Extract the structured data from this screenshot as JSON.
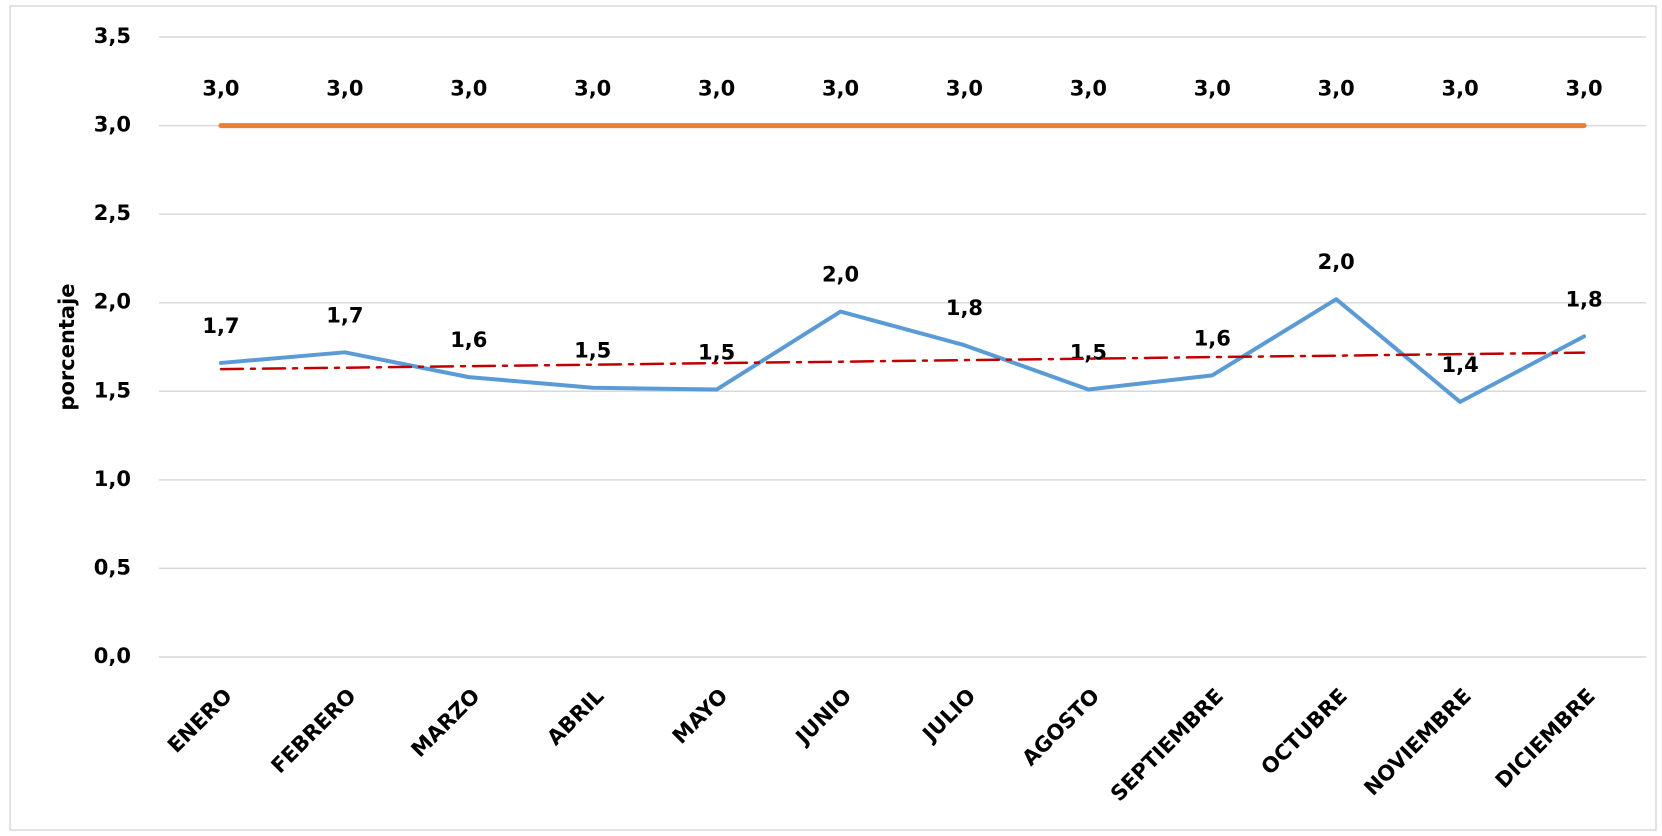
{
  "chart_data": {
    "type": "line",
    "y_label": "porcentaje",
    "categories": [
      "ENERO",
      "FEBRERO",
      "MARZO",
      "ABRIL",
      "MAYO",
      "JUNIO",
      "JULIO",
      "AGOSTO",
      "SEPTIEMBRE",
      "OCTUBRE",
      "NOVIEMBRE",
      "DICIEMBRE"
    ],
    "series": [
      {
        "color": "#ed7d31",
        "width": 5,
        "values": [
          3,
          3,
          3,
          3,
          3,
          3,
          3,
          3,
          3,
          3,
          3,
          3
        ],
        "value_labels": [
          "3,0",
          "3,0",
          "3,0",
          "3,0",
          "3,0",
          "3,0",
          "3,0",
          "3,0",
          "3,0",
          "3,0",
          "3,0",
          "3,0"
        ]
      },
      {
        "color": "#5b9bd5",
        "width": 4,
        "values": [
          1.66,
          1.72,
          1.58,
          1.52,
          1.51,
          1.95,
          1.76,
          1.51,
          1.59,
          2.02,
          1.44,
          1.81
        ],
        "value_labels": [
          "1,7",
          "1,7",
          "1,6",
          "1,5",
          "1,5",
          "2,0",
          "1,8",
          "1,5",
          "1,6",
          "2,0",
          "1,4",
          "1,8"
        ]
      },
      {
        "color": "#c00000",
        "width": 2.5,
        "dash": "dashdot",
        "values": [
          1.625,
          1.633,
          1.642,
          1.65,
          1.659,
          1.667,
          1.676,
          1.684,
          1.693,
          1.701,
          1.71,
          1.718
        ]
      }
    ],
    "ylim": [
      0,
      3.5
    ],
    "yticks": [
      {
        "value": 0,
        "label": "0,0"
      },
      {
        "value": 0.5,
        "label": "0,5"
      },
      {
        "value": 1,
        "label": "1,0"
      },
      {
        "value": 1.5,
        "label": "1,5"
      },
      {
        "value": 2,
        "label": "2,0"
      },
      {
        "value": 2.5,
        "label": "2,5"
      },
      {
        "value": 3,
        "label": "3,0"
      },
      {
        "value": 3.5,
        "label": "3,5"
      }
    ],
    "grid": true
  }
}
